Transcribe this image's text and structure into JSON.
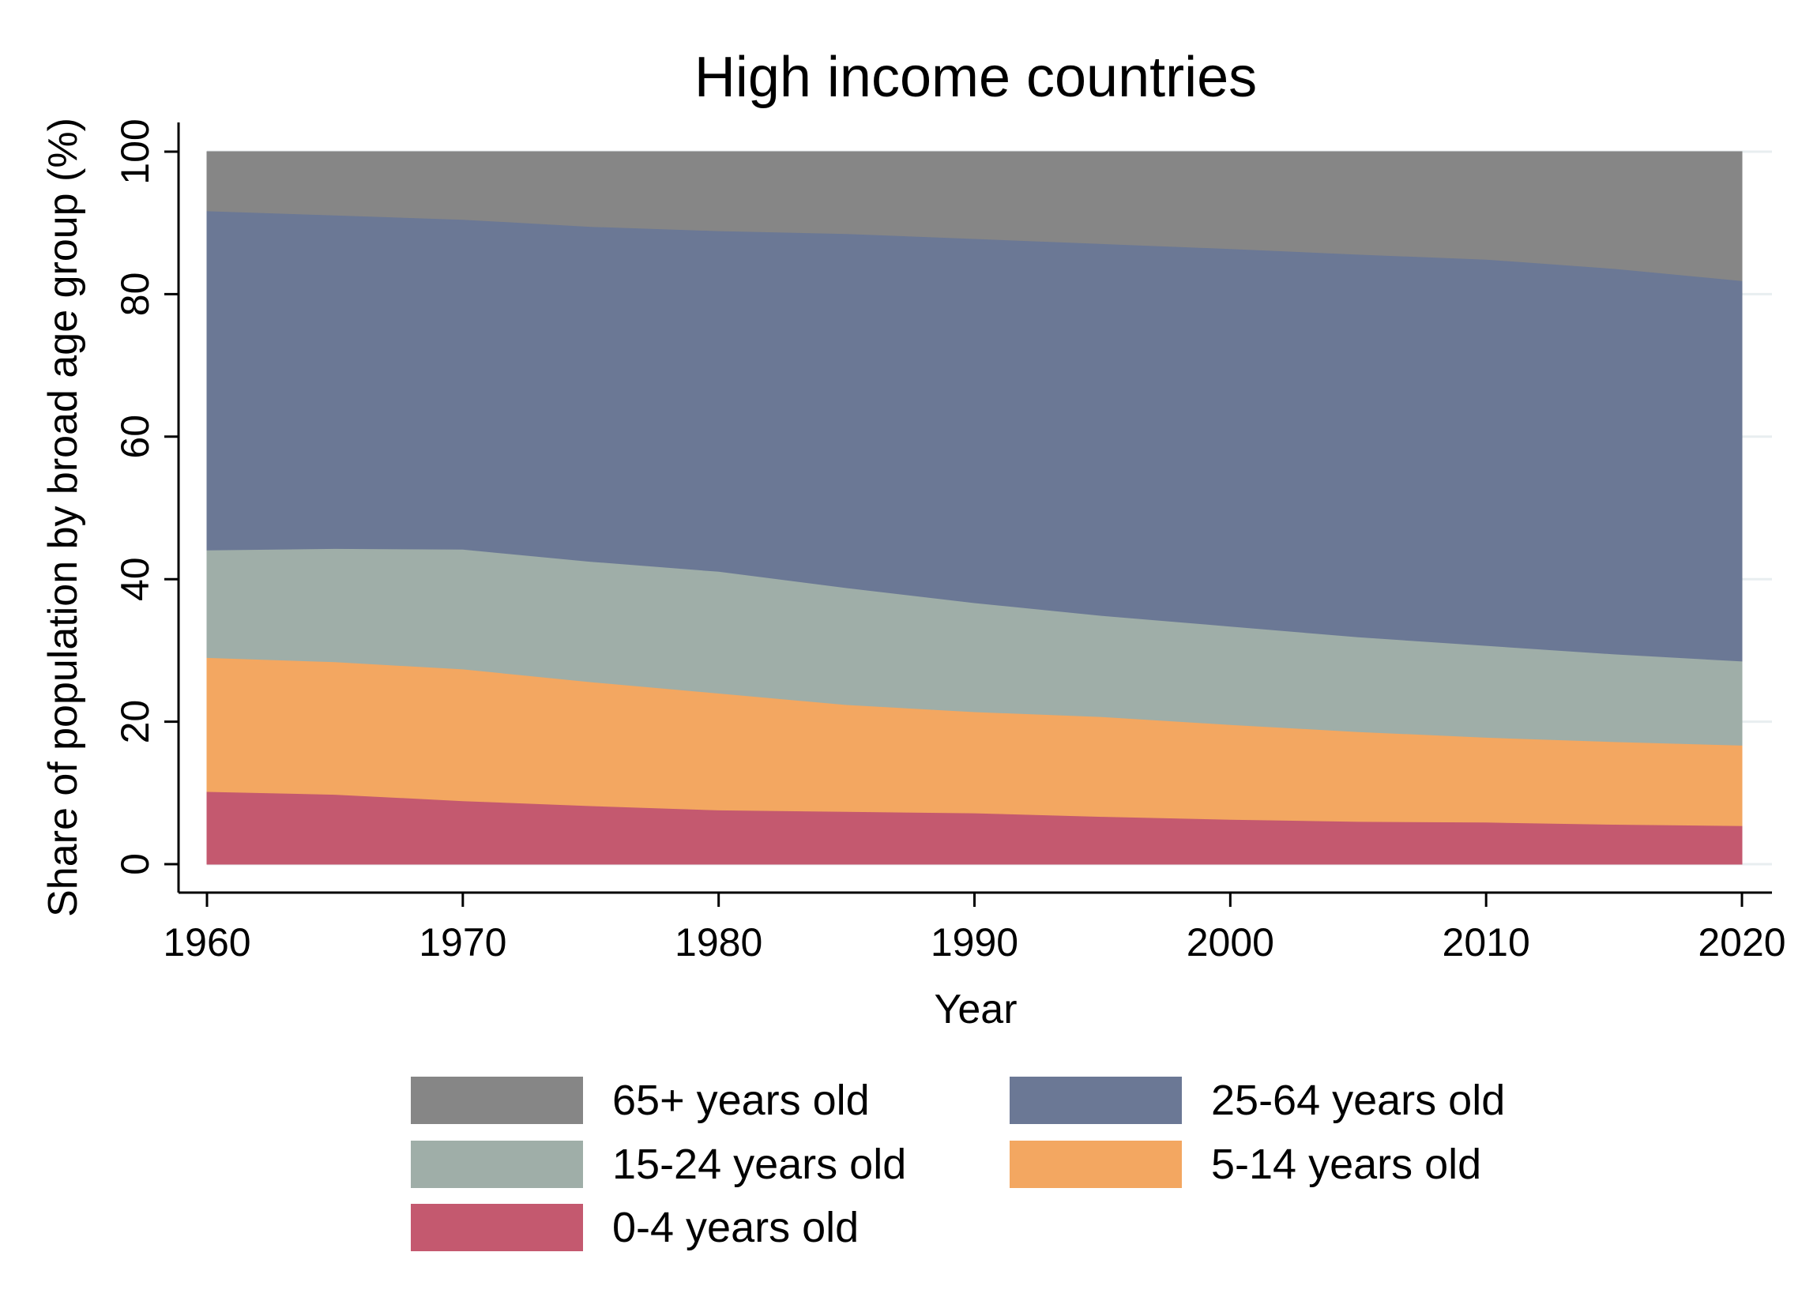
{
  "chart_data": {
    "type": "area",
    "stacked": true,
    "title": "High income countries",
    "xlabel": "Year",
    "ylabel": "Share of population by broad age group (%)",
    "xlim": [
      1960,
      2020
    ],
    "ylim": [
      0,
      100
    ],
    "xticks": [
      "1960",
      "1970",
      "1980",
      "1990",
      "2000",
      "2010",
      "2020"
    ],
    "yticks": [
      "0",
      "20",
      "40",
      "60",
      "80",
      "100"
    ],
    "grid": true,
    "legend_position": "bottom",
    "x": [
      1960,
      1965,
      1970,
      1975,
      1980,
      1985,
      1990,
      1995,
      2000,
      2005,
      2010,
      2015,
      2020
    ],
    "series": [
      {
        "name": "0-4 years old",
        "color": "#c4596f",
        "values": [
          10.2,
          9.8,
          8.9,
          8.2,
          7.6,
          7.4,
          7.2,
          6.7,
          6.3,
          6.0,
          5.9,
          5.6,
          5.4
        ]
      },
      {
        "name": "5-14 years old",
        "color": "#f3a761",
        "values": [
          18.8,
          18.6,
          18.5,
          17.4,
          16.4,
          15.0,
          14.2,
          14.0,
          13.3,
          12.6,
          11.9,
          11.6,
          11.3
        ]
      },
      {
        "name": "15-24 years old",
        "color": "#9faea8",
        "values": [
          15.1,
          15.9,
          16.8,
          16.9,
          17.1,
          16.4,
          15.3,
          14.2,
          13.8,
          13.3,
          12.9,
          12.3,
          11.8
        ]
      },
      {
        "name": "25-64 years old",
        "color": "#6b7895",
        "values": [
          47.6,
          46.8,
          46.3,
          47.0,
          47.8,
          49.7,
          51.1,
          52.2,
          53.0,
          53.7,
          54.2,
          54.1,
          53.4
        ]
      },
      {
        "name": "65+ years old",
        "color": "#868686",
        "values": [
          8.3,
          8.9,
          9.5,
          10.5,
          11.1,
          11.5,
          12.2,
          12.9,
          13.6,
          14.4,
          15.1,
          16.4,
          18.1
        ]
      }
    ],
    "legend_order": [
      "65+ years old",
      "25-64 years old",
      "15-24 years old",
      "5-14 years old",
      "0-4 years old"
    ]
  }
}
